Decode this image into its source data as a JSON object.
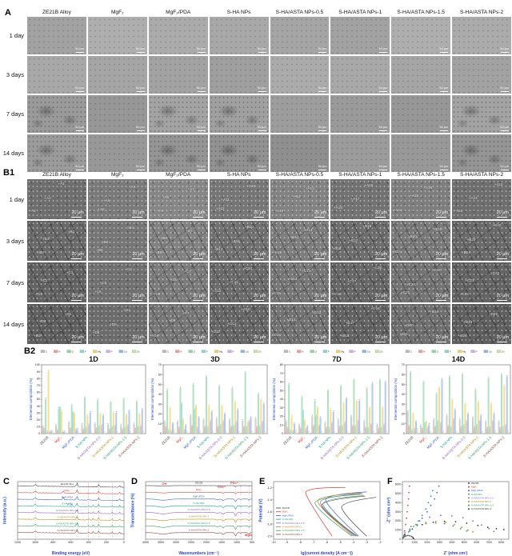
{
  "column_headers": [
    "ZE21B Alloy",
    "MgF₂",
    "MgF₂/PDA",
    "S-HA NPs",
    "S-HA/ASTA NPs-0.5",
    "S-HA/ASTA NPs-1",
    "S-HA/ASTA NPs-1.5",
    "S-HA/ASTA NPs-2"
  ],
  "samples": [
    {
      "label": "ZE21B Alloy",
      "short": "ZE21B",
      "color": "#3d3d3d"
    },
    {
      "label": "MgF₂",
      "short": "MgF₂",
      "color": "#e03a2f"
    },
    {
      "label": "MgF₂/PDA",
      "short": "MgF₂/PDA",
      "color": "#3a62c6"
    },
    {
      "label": "S-HA NPs",
      "short": "S-HA NPs",
      "color": "#12a180"
    },
    {
      "label": "S-HA/ASTA NPs-0.5",
      "short": "S-HA/ASTA NPs-0.5",
      "color": "#8e5fc8"
    },
    {
      "label": "S-HA/ASTA NPs-1",
      "short": "S-HA/ASTA NPs-1",
      "color": "#b18b12"
    },
    {
      "label": "S-HA/ASTA NPs-1.5",
      "short": "S-HA/ASTA NPs-1.5",
      "color": "#2c9f62"
    },
    {
      "label": "S-HA/ASTA NPs-2",
      "short": "S-HA/ASTA NPs-2",
      "color": "#8a4438"
    }
  ],
  "panel_a": {
    "label": "A",
    "rows": [
      "1 day",
      "3 days",
      "7 days",
      "14 days"
    ],
    "scalebar": "50 μm"
  },
  "panel_b1": {
    "label": "B1",
    "rows": [
      "1 day",
      "3 days",
      "7 days",
      "14 days"
    ],
    "marker_prefixes": [
      "A",
      "B",
      "C",
      "D"
    ],
    "markers_per_cell": 3,
    "scalebar": "20 μm"
  },
  "panel_b2": {
    "label": "B2",
    "ylabel": "Elemental composition (%)",
    "elements": [
      {
        "name": "C",
        "color": "#b9b9b9"
      },
      {
        "name": "N",
        "color": "#f09b92"
      },
      {
        "name": "O",
        "color": "#8ed3a4"
      },
      {
        "name": "F",
        "color": "#86d6cf"
      },
      {
        "name": "Mg",
        "color": "#f1cf63"
      },
      {
        "name": "P",
        "color": "#c9aede"
      },
      {
        "name": "Ca",
        "color": "#8fb0e8"
      },
      {
        "name": "Zn",
        "color": "#c9e59b"
      }
    ]
  },
  "panel_c": {
    "label": "C"
  },
  "panel_d": {
    "label": "D"
  },
  "panel_e": {
    "label": "E"
  },
  "panel_f": {
    "label": "F"
  },
  "chart_data": [
    {
      "id": "edx-1d",
      "type": "bar",
      "title": "1D",
      "ylim": [
        0,
        100
      ],
      "categories": [
        "ZE21B",
        "MgF₂",
        "MgF₂/PDA",
        "S-HA NPs",
        "S-HA/ASTA NPs-0.5",
        "S-HA/ASTA NPs-1",
        "S-HA/ASTA NPs-1.5",
        "S-HA/ASTA NPs-2"
      ],
      "series": [
        {
          "name": "C",
          "values": [
            10,
            12,
            16,
            13,
            14,
            13,
            12,
            14
          ]
        },
        {
          "name": "N",
          "values": [
            6,
            4,
            6,
            5,
            6,
            5,
            5,
            6
          ]
        },
        {
          "name": "O",
          "values": [
            50,
            36,
            40,
            52,
            48,
            45,
            50,
            46
          ]
        },
        {
          "name": "F",
          "values": [
            2,
            38,
            30,
            8,
            10,
            9,
            8,
            9
          ]
        },
        {
          "name": "Mg",
          "values": [
            90,
            32,
            28,
            26,
            28,
            30,
            27,
            28
          ]
        },
        {
          "name": "P",
          "values": [
            2,
            2,
            5,
            12,
            11,
            10,
            11,
            10
          ]
        },
        {
          "name": "Ca",
          "values": [
            3,
            2,
            6,
            30,
            26,
            30,
            33,
            35
          ]
        },
        {
          "name": "Zn",
          "values": [
            3,
            1,
            1,
            1,
            1,
            1,
            1,
            1
          ]
        }
      ]
    },
    {
      "id": "edx-3d",
      "type": "bar",
      "title": "3D",
      "ylim": [
        0,
        70
      ],
      "categories": [
        "ZE21B",
        "MgF₂",
        "MgF₂/PDA",
        "S-HA NPs",
        "S-HA/ASTA NPs-0.5",
        "S-HA/ASTA NPs-1",
        "S-HA/ASTA NPs-1.5",
        "S-HA/ASTA NPs-2"
      ],
      "series": [
        {
          "name": "C",
          "values": [
            12,
            12,
            18,
            14,
            15,
            14,
            13,
            15
          ]
        },
        {
          "name": "N",
          "values": [
            6,
            5,
            7,
            6,
            6,
            6,
            6,
            6
          ]
        },
        {
          "name": "O",
          "values": [
            44,
            46,
            50,
            58,
            48,
            46,
            62,
            40
          ]
        },
        {
          "name": "F",
          "values": [
            3,
            30,
            24,
            6,
            8,
            7,
            6,
            7
          ]
        },
        {
          "name": "Mg",
          "values": [
            26,
            14,
            28,
            28,
            28,
            32,
            12,
            34
          ]
        },
        {
          "name": "P",
          "values": [
            2,
            3,
            5,
            12,
            12,
            11,
            12,
            11
          ]
        },
        {
          "name": "Ca",
          "values": [
            10,
            8,
            16,
            22,
            20,
            24,
            16,
            30
          ]
        },
        {
          "name": "Zn",
          "values": [
            3,
            1,
            1,
            1,
            1,
            1,
            1,
            1
          ]
        }
      ]
    },
    {
      "id": "edx-7d",
      "type": "bar",
      "title": "7D",
      "ylim": [
        0,
        80
      ],
      "categories": [
        "ZE21B",
        "MgF₂",
        "MgF₂/PDA",
        "S-HA NPs",
        "S-HA/ASTA NPs-0.5",
        "S-HA/ASTA NPs-1",
        "S-HA/ASTA NPs-1.5",
        "S-HA/ASTA NPs-2"
      ],
      "series": [
        {
          "name": "C",
          "values": [
            14,
            10,
            20,
            12,
            16,
            20,
            14,
            10
          ]
        },
        {
          "name": "N",
          "values": [
            6,
            5,
            8,
            6,
            7,
            8,
            6,
            5
          ]
        },
        {
          "name": "O",
          "values": [
            57,
            42,
            38,
            50,
            55,
            62,
            52,
            62
          ]
        },
        {
          "name": "F",
          "values": [
            3,
            26,
            20,
            6,
            8,
            8,
            6,
            6
          ]
        },
        {
          "name": "Mg",
          "values": [
            20,
            15,
            30,
            28,
            35,
            38,
            30,
            30
          ]
        },
        {
          "name": "P",
          "values": [
            2,
            4,
            8,
            12,
            12,
            14,
            10,
            10
          ]
        },
        {
          "name": "Ca",
          "values": [
            11,
            8,
            18,
            25,
            40,
            38,
            58,
            60
          ]
        },
        {
          "name": "Zn",
          "values": [
            3,
            1,
            1,
            1,
            1,
            1,
            1,
            1
          ]
        }
      ]
    },
    {
      "id": "edx-14d",
      "type": "bar",
      "title": "14D",
      "ylim": [
        0,
        70
      ],
      "categories": [
        "ZE21B",
        "MgF₂",
        "MgF₂/PDA",
        "S-HA NPs",
        "S-HA/ASTA NPs-0.5",
        "S-HA/ASTA NPs-1",
        "S-HA/ASTA NPs-1.5",
        "S-HA/ASTA NPs-2"
      ],
      "series": [
        {
          "name": "C",
          "values": [
            22,
            8,
            14,
            18,
            14,
            16,
            12,
            12
          ]
        },
        {
          "name": "N",
          "values": [
            7,
            4,
            6,
            7,
            6,
            6,
            5,
            5
          ]
        },
        {
          "name": "O",
          "values": [
            62,
            52,
            40,
            58,
            60,
            44,
            56,
            60
          ]
        },
        {
          "name": "F",
          "values": [
            3,
            10,
            12,
            6,
            8,
            8,
            6,
            6
          ]
        },
        {
          "name": "Mg",
          "values": [
            20,
            12,
            46,
            34,
            30,
            32,
            30,
            48
          ]
        },
        {
          "name": "P",
          "values": [
            4,
            5,
            10,
            14,
            12,
            12,
            12,
            8
          ]
        },
        {
          "name": "Ca",
          "values": [
            12,
            9,
            55,
            24,
            20,
            18,
            20,
            58
          ]
        },
        {
          "name": "Zn",
          "values": [
            4,
            1,
            1,
            1,
            1,
            1,
            2,
            2
          ]
        }
      ]
    },
    {
      "id": "xps",
      "type": "line",
      "xlabel": "Binding energy (eV)",
      "ylabel": "Intensity (a.u.)",
      "xticks": [
        1200,
        1000,
        800,
        600,
        400,
        200,
        0
      ],
      "series_labels": [
        "ZE21B Alloy",
        "MgF₂",
        "MgF₂/PDA",
        "S-HA NPs",
        "S-HA/ASTA NPs-0.5",
        "S-HA/ASTA NPs-1",
        "S-HA/ASTA NPs-1.5",
        "S-HA/ASTA NPs-2"
      ],
      "peak_annotation": {
        "text": "F 1s",
        "x": 685
      }
    },
    {
      "id": "ftir",
      "type": "line",
      "xlabel": "Wavenumbers (cm⁻¹)",
      "ylabel": "Transmittance (%)",
      "xticks": [
        4000,
        3500,
        3000,
        2500,
        2000,
        1500,
        1000,
        500
      ],
      "series_labels": [
        "ZE21B",
        "MgF₂",
        "MgF₂/PDA",
        "S-HA NPs",
        "S-HA/ASTA NPs-0.5",
        "S-HA/ASTA NPs-1",
        "S-HA/ASTA NPs-1.5",
        "S-HA/ASTA NPs-2"
      ],
      "annotations": [
        {
          "text": "-OH",
          "x": 3400
        },
        {
          "text": "CO₃²⁻",
          "x": 1480
        },
        {
          "text": "PO₄³⁻",
          "x": 1060
        },
        {
          "text": "MgO",
          "x": 620
        }
      ]
    },
    {
      "id": "tafel",
      "type": "line",
      "xlabel": "lg(current density (A cm⁻²))",
      "ylabel": "Potential (V)",
      "xticks": [
        -10,
        -9,
        -8,
        -7,
        -6,
        -5,
        -4,
        -3,
        -2
      ],
      "yticks": [
        -2.0,
        -1.8,
        -1.6,
        -1.4,
        -1.2
      ],
      "curves": [
        {
          "name": "ZE21B",
          "ecorr": -1.52,
          "log_icorr": -4.9,
          "cath_end": -3.0,
          "anod_end": -2.3,
          "anod_e": -1.36
        },
        {
          "name": "MgF₂",
          "ecorr": -1.28,
          "log_icorr": -7.6,
          "cath_end": -5.6,
          "anod_end": -4.6,
          "anod_e": -1.2
        },
        {
          "name": "MgF₂/PDA",
          "ecorr": -1.4,
          "log_icorr": -6.1,
          "cath_end": -3.6,
          "anod_end": -3.0,
          "anod_e": -1.27
        },
        {
          "name": "S-HA NPs",
          "ecorr": -1.47,
          "log_icorr": -6.3,
          "cath_end": -3.8,
          "anod_end": -3.2,
          "anod_e": -1.33
        },
        {
          "name": "S-HA/ASTA NPs-0.5",
          "ecorr": -1.44,
          "log_icorr": -6.5,
          "cath_end": -3.9,
          "anod_end": -3.3,
          "anod_e": -1.3
        },
        {
          "name": "S-HA/ASTA NPs-1",
          "ecorr": -1.42,
          "log_icorr": -6.7,
          "cath_end": -4.0,
          "anod_end": -3.4,
          "anod_e": -1.29
        },
        {
          "name": "S-HA/ASTA NPs-1.5",
          "ecorr": -1.45,
          "log_icorr": -6.9,
          "cath_end": -4.1,
          "anod_end": -3.5,
          "anod_e": -1.31
        },
        {
          "name": "S-HA/ASTA NPs-2",
          "ecorr": -1.49,
          "log_icorr": -6.4,
          "cath_end": -3.7,
          "anod_end": -3.1,
          "anod_e": -1.34
        }
      ]
    },
    {
      "id": "eis",
      "type": "scatter",
      "xlabel": "Z' (ohm cm²)",
      "ylabel": "-Z'' (ohm cm²)",
      "xticks": [
        0,
        1000,
        2000,
        3000,
        4000,
        5000,
        6000,
        7000,
        8000
      ],
      "yticks": [
        0,
        1000,
        2000,
        3000,
        4000,
        5000,
        6000
      ],
      "series": [
        {
          "name": "ZE21B",
          "points": [
            [
              60,
              160
            ],
            [
              160,
              290
            ],
            [
              300,
              370
            ],
            [
              450,
              400
            ],
            [
              600,
              375
            ],
            [
              750,
              300
            ],
            [
              850,
              180
            ],
            [
              900,
              80
            ]
          ]
        },
        {
          "name": "MgF₂",
          "points": [
            [
              100,
              350
            ],
            [
              180,
              900
            ],
            [
              260,
              1600
            ],
            [
              330,
              2300
            ],
            [
              390,
              3000
            ],
            [
              440,
              3700
            ],
            [
              490,
              4400
            ],
            [
              530,
              5100
            ],
            [
              570,
              5800
            ]
          ]
        },
        {
          "name": "MgF₂/PDA",
          "points": [
            [
              200,
              300
            ],
            [
              600,
              900
            ],
            [
              1100,
              1600
            ],
            [
              1600,
              2300
            ],
            [
              2000,
              3000
            ],
            [
              2300,
              3700
            ],
            [
              2600,
              4400
            ],
            [
              2800,
              5100
            ],
            [
              2950,
              5800
            ]
          ]
        },
        {
          "name": "S-HA NPs",
          "points": [
            [
              150,
              250
            ],
            [
              500,
              800
            ],
            [
              900,
              1400
            ],
            [
              1300,
              2000
            ],
            [
              1600,
              2600
            ],
            [
              1900,
              3300
            ],
            [
              2100,
              4000
            ],
            [
              2300,
              4700
            ],
            [
              2450,
              5300
            ]
          ]
        },
        {
          "name": "S-HA/ASTA NPs-0.5",
          "points": [
            [
              200,
              700
            ],
            [
              700,
              1400
            ],
            [
              1400,
              2000
            ],
            [
              2200,
              2400
            ],
            [
              3100,
              2600
            ],
            [
              4000,
              2550
            ],
            [
              4900,
              2350
            ],
            [
              5700,
              2000
            ],
            [
              6400,
              1550
            ],
            [
              7000,
              1150
            ],
            [
              7400,
              850
            ]
          ]
        },
        {
          "name": "S-HA/ASTA NPs-1",
          "points": [
            [
              150,
              500
            ],
            [
              600,
              1100
            ],
            [
              1200,
              1600
            ],
            [
              1900,
              1850
            ],
            [
              2700,
              1950
            ],
            [
              3500,
              1850
            ],
            [
              4200,
              1600
            ],
            [
              4800,
              1300
            ],
            [
              5300,
              1000
            ],
            [
              5700,
              800
            ]
          ]
        },
        {
          "name": "S-HA/ASTA NPs-1.5",
          "points": [
            [
              150,
              450
            ],
            [
              600,
              1000
            ],
            [
              1200,
              1500
            ],
            [
              1900,
              1700
            ],
            [
              2700,
              1780
            ],
            [
              3400,
              1700
            ],
            [
              4100,
              1450
            ],
            [
              4700,
              1150
            ],
            [
              5200,
              900
            ]
          ]
        },
        {
          "name": "S-HA/ASTA NPs-2",
          "points": [
            [
              200,
              500
            ],
            [
              800,
              1100
            ],
            [
              1600,
              1600
            ],
            [
              2500,
              1850
            ],
            [
              3400,
              1950
            ],
            [
              4300,
              1900
            ],
            [
              5200,
              1750
            ],
            [
              6100,
              1500
            ],
            [
              6900,
              1300
            ],
            [
              7600,
              1150
            ],
            [
              8200,
              1050
            ]
          ]
        }
      ]
    }
  ]
}
